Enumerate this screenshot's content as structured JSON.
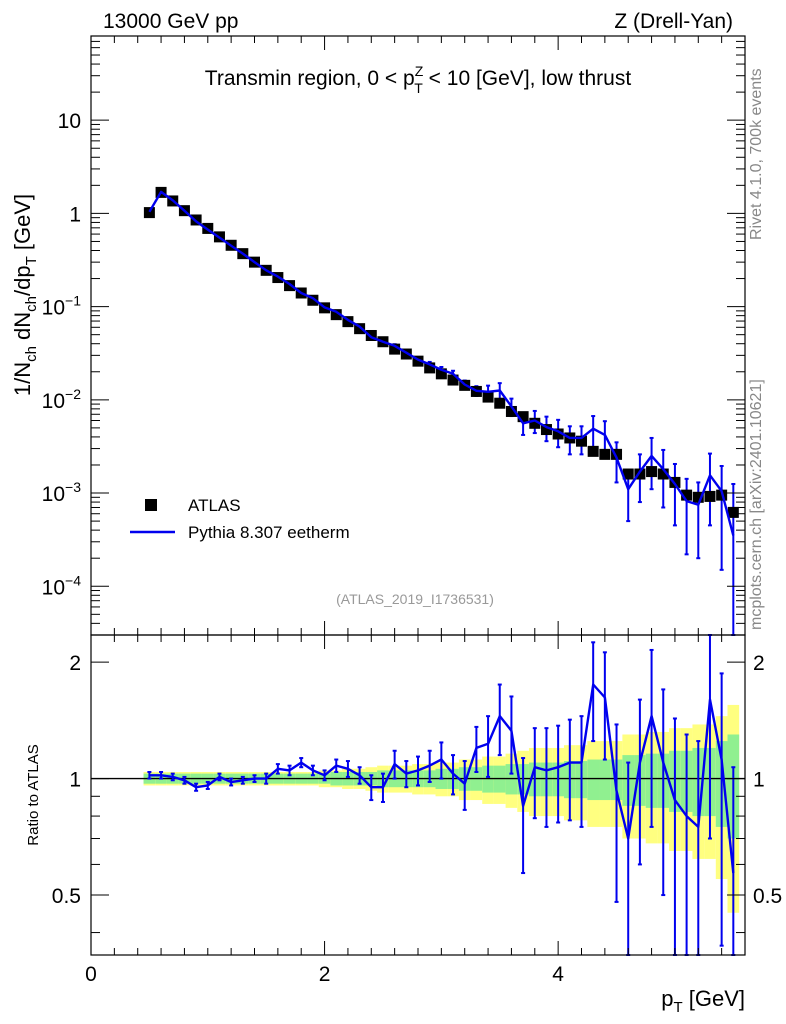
{
  "header": {
    "left": "13000 GeV pp",
    "right": "Z (Drell-Yan)"
  },
  "side": {
    "rivet": "Rivet 4.1.0,  700k events",
    "mcplots": "mcplots.cern.ch [arXiv:2401.10621]"
  },
  "chart_data": [
    {
      "type": "line",
      "panel": "main",
      "title": "Transmin region, 0 < p_T^Z < 10 [GeV], low thrust",
      "title_parts": {
        "pre": "Transmin region, 0 < p",
        "sup": "Z",
        "sub": "T",
        "post": " < 10 [GeV], low thrust"
      },
      "analysis_label": "(ATLAS_2019_I1736531)",
      "xlabel": "p_T [GeV]",
      "ylabel": "1/N_ch dN_ch/dp_T [GeV]",
      "xlim": [
        0,
        5.6
      ],
      "ylim": [
        3e-05,
        80
      ],
      "yscale": "log",
      "yticks": [
        {
          "value": 0.0001,
          "label": "10",
          "exp": "−4"
        },
        {
          "value": 0.001,
          "label": "10",
          "exp": "−3"
        },
        {
          "value": 0.01,
          "label": "10",
          "exp": "−2"
        },
        {
          "value": 0.1,
          "label": "10",
          "exp": "−1"
        },
        {
          "value": 1,
          "label": "1",
          "exp": ""
        },
        {
          "value": 10,
          "label": "10",
          "exp": ""
        }
      ],
      "legend": {
        "position": "lower-left",
        "entries": [
          "ATLAS",
          "Pythia 8.307 eetherm"
        ]
      },
      "x": [
        0.5,
        0.6,
        0.7,
        0.8,
        0.9,
        1.0,
        1.1,
        1.2,
        1.3,
        1.4,
        1.5,
        1.6,
        1.7,
        1.8,
        1.9,
        2.0,
        2.1,
        2.2,
        2.3,
        2.4,
        2.5,
        2.6,
        2.7,
        2.8,
        2.9,
        3.0,
        3.1,
        3.2,
        3.3,
        3.4,
        3.5,
        3.6,
        3.7,
        3.8,
        3.9,
        4.0,
        4.1,
        4.2,
        4.3,
        4.4,
        4.5,
        4.6,
        4.7,
        4.8,
        4.9,
        5.0,
        5.1,
        5.2,
        5.3,
        5.4,
        5.5
      ],
      "series": [
        {
          "name": "ATLAS",
          "marker": "square",
          "values": [
            1.02,
            1.68,
            1.36,
            1.07,
            0.85,
            0.69,
            0.56,
            0.455,
            0.37,
            0.3,
            0.245,
            0.205,
            0.168,
            0.14,
            0.117,
            0.097,
            0.082,
            0.069,
            0.058,
            0.049,
            0.042,
            0.035,
            0.031,
            0.026,
            0.022,
            0.019,
            0.0163,
            0.0143,
            0.0123,
            0.0107,
            0.0092,
            0.0075,
            0.0066,
            0.0056,
            0.0048,
            0.0043,
            0.0039,
            0.0036,
            0.0028,
            0.0026,
            0.0026,
            0.0016,
            0.0016,
            0.0017,
            0.0016,
            0.0013,
            0.00095,
            0.0009,
            0.00092,
            0.00095,
            0.00062
          ]
        },
        {
          "name": "Pythia 8.307 eetherm",
          "color": "#0000ee",
          "values": [
            1.04,
            1.7,
            1.38,
            1.07,
            0.82,
            0.67,
            0.55,
            0.45,
            0.37,
            0.3,
            0.245,
            0.21,
            0.175,
            0.14,
            0.123,
            0.098,
            0.088,
            0.072,
            0.061,
            0.047,
            0.042,
            0.038,
            0.032,
            0.027,
            0.024,
            0.021,
            0.019,
            0.0146,
            0.0125,
            0.0122,
            0.0126,
            0.0085,
            0.0056,
            0.006,
            0.0051,
            0.0046,
            0.0039,
            0.0039,
            0.0049,
            0.0042,
            0.0024,
            0.0011,
            0.0017,
            0.0025,
            0.0018,
            0.00125,
            0.00082,
            0.00075,
            0.00155,
            0.00105,
            0.00035
          ],
          "err_lo": [
            0.02,
            0.03,
            0.03,
            0.02,
            0.02,
            0.01,
            0.01,
            0.01,
            0.01,
            0.006,
            0.005,
            0.004,
            0.004,
            0.003,
            0.003,
            0.002,
            0.002,
            0.002,
            0.002,
            0.002,
            0.002,
            0.0015,
            0.0015,
            0.0015,
            0.0015,
            0.0015,
            0.0015,
            0.0015,
            0.0015,
            0.002,
            0.0025,
            0.0018,
            0.0014,
            0.0016,
            0.0015,
            0.0015,
            0.0013,
            0.0013,
            0.0018,
            0.0017,
            0.0011,
            0.0006,
            0.0009,
            0.0014,
            0.0011,
            0.0008,
            0.0006,
            0.00055,
            0.0011,
            0.0009,
            0.00034
          ],
          "err_hi": [
            0.02,
            0.03,
            0.03,
            0.02,
            0.02,
            0.01,
            0.01,
            0.01,
            0.01,
            0.006,
            0.005,
            0.004,
            0.004,
            0.003,
            0.003,
            0.002,
            0.002,
            0.002,
            0.002,
            0.002,
            0.002,
            0.0015,
            0.0015,
            0.0015,
            0.0015,
            0.0015,
            0.0015,
            0.0015,
            0.0015,
            0.002,
            0.0025,
            0.0018,
            0.0014,
            0.0016,
            0.0015,
            0.0015,
            0.0013,
            0.0013,
            0.0018,
            0.0017,
            0.0011,
            0.0006,
            0.0009,
            0.0014,
            0.0011,
            0.0008,
            0.0006,
            0.00055,
            0.0011,
            0.0009,
            0.0009
          ]
        }
      ]
    },
    {
      "type": "line",
      "panel": "ratio",
      "xlabel": "p_T [GeV]",
      "ylabel": "Ratio to ATLAS",
      "xlim": [
        0,
        5.6
      ],
      "ylim": [
        0.35,
        2.35
      ],
      "yscale": "log",
      "yticks": [
        0.5,
        1,
        2
      ],
      "ytick_labels": [
        "0.5",
        "1",
        "2"
      ],
      "xticks": [
        0,
        2,
        4
      ],
      "xtick_labels": [
        "0",
        "2",
        "4"
      ],
      "x": [
        0.5,
        0.6,
        0.7,
        0.8,
        0.9,
        1.0,
        1.1,
        1.2,
        1.3,
        1.4,
        1.5,
        1.6,
        1.7,
        1.8,
        1.9,
        2.0,
        2.1,
        2.2,
        2.3,
        2.4,
        2.5,
        2.6,
        2.7,
        2.8,
        2.9,
        3.0,
        3.1,
        3.2,
        3.3,
        3.4,
        3.5,
        3.6,
        3.7,
        3.8,
        3.9,
        4.0,
        4.1,
        4.2,
        4.3,
        4.4,
        4.5,
        4.6,
        4.7,
        4.8,
        4.9,
        5.0,
        5.1,
        5.2,
        5.3,
        5.4,
        5.5
      ],
      "band_stat": [
        0.03,
        0.03,
        0.03,
        0.03,
        0.03,
        0.03,
        0.03,
        0.03,
        0.03,
        0.03,
        0.03,
        0.03,
        0.03,
        0.03,
        0.03,
        0.03,
        0.04,
        0.04,
        0.04,
        0.04,
        0.05,
        0.05,
        0.05,
        0.05,
        0.05,
        0.06,
        0.06,
        0.07,
        0.07,
        0.08,
        0.08,
        0.09,
        0.09,
        0.1,
        0.1,
        0.1,
        0.11,
        0.11,
        0.12,
        0.12,
        0.12,
        0.15,
        0.15,
        0.16,
        0.16,
        0.18,
        0.18,
        0.2,
        0.2,
        0.25,
        0.3
      ],
      "band_total": [
        0.04,
        0.04,
        0.04,
        0.04,
        0.04,
        0.04,
        0.04,
        0.04,
        0.04,
        0.04,
        0.04,
        0.04,
        0.04,
        0.04,
        0.04,
        0.05,
        0.05,
        0.06,
        0.06,
        0.07,
        0.08,
        0.08,
        0.08,
        0.09,
        0.09,
        0.1,
        0.1,
        0.12,
        0.12,
        0.14,
        0.14,
        0.16,
        0.18,
        0.2,
        0.2,
        0.2,
        0.22,
        0.22,
        0.25,
        0.25,
        0.25,
        0.3,
        0.3,
        0.32,
        0.32,
        0.35,
        0.35,
        0.38,
        0.38,
        0.45,
        0.55
      ],
      "series": [
        {
          "name": "Pythia 8.307 eetherm",
          "color": "#0000ee",
          "values": [
            1.02,
            1.02,
            1.01,
            0.99,
            0.95,
            0.96,
            1.01,
            0.98,
            0.99,
            1.0,
            1.0,
            1.06,
            1.05,
            1.1,
            1.05,
            1.02,
            1.08,
            1.06,
            1.02,
            0.95,
            0.95,
            1.09,
            1.03,
            1.05,
            1.08,
            1.12,
            1.03,
            0.97,
            1.2,
            1.23,
            1.45,
            1.33,
            0.85,
            1.07,
            1.05,
            1.07,
            1.1,
            1.1,
            1.75,
            1.62,
            0.93,
            0.7,
            1.1,
            1.45,
            1.1,
            0.88,
            0.8,
            0.75,
            1.6,
            1.12,
            0.57
          ],
          "err_lo": [
            0.02,
            0.02,
            0.02,
            0.02,
            0.02,
            0.02,
            0.02,
            0.02,
            0.02,
            0.02,
            0.03,
            0.03,
            0.03,
            0.03,
            0.03,
            0.03,
            0.04,
            0.05,
            0.05,
            0.07,
            0.08,
            0.09,
            0.08,
            0.09,
            0.1,
            0.12,
            0.12,
            0.14,
            0.16,
            0.22,
            0.3,
            0.3,
            0.28,
            0.28,
            0.3,
            0.3,
            0.32,
            0.35,
            0.5,
            0.5,
            0.45,
            0.4,
            0.5,
            0.7,
            0.6,
            0.55,
            0.5,
            0.5,
            0.9,
            0.75,
            0.5
          ],
          "err_hi": [
            0.02,
            0.02,
            0.02,
            0.02,
            0.02,
            0.02,
            0.02,
            0.02,
            0.02,
            0.02,
            0.03,
            0.03,
            0.03,
            0.03,
            0.03,
            0.03,
            0.04,
            0.05,
            0.05,
            0.07,
            0.08,
            0.09,
            0.08,
            0.09,
            0.1,
            0.12,
            0.12,
            0.14,
            0.16,
            0.22,
            0.3,
            0.3,
            0.28,
            0.28,
            0.3,
            0.3,
            0.32,
            0.35,
            0.5,
            0.5,
            0.45,
            0.4,
            0.5,
            0.7,
            0.6,
            0.55,
            0.5,
            0.5,
            0.9,
            0.75,
            0.5
          ]
        }
      ]
    }
  ]
}
